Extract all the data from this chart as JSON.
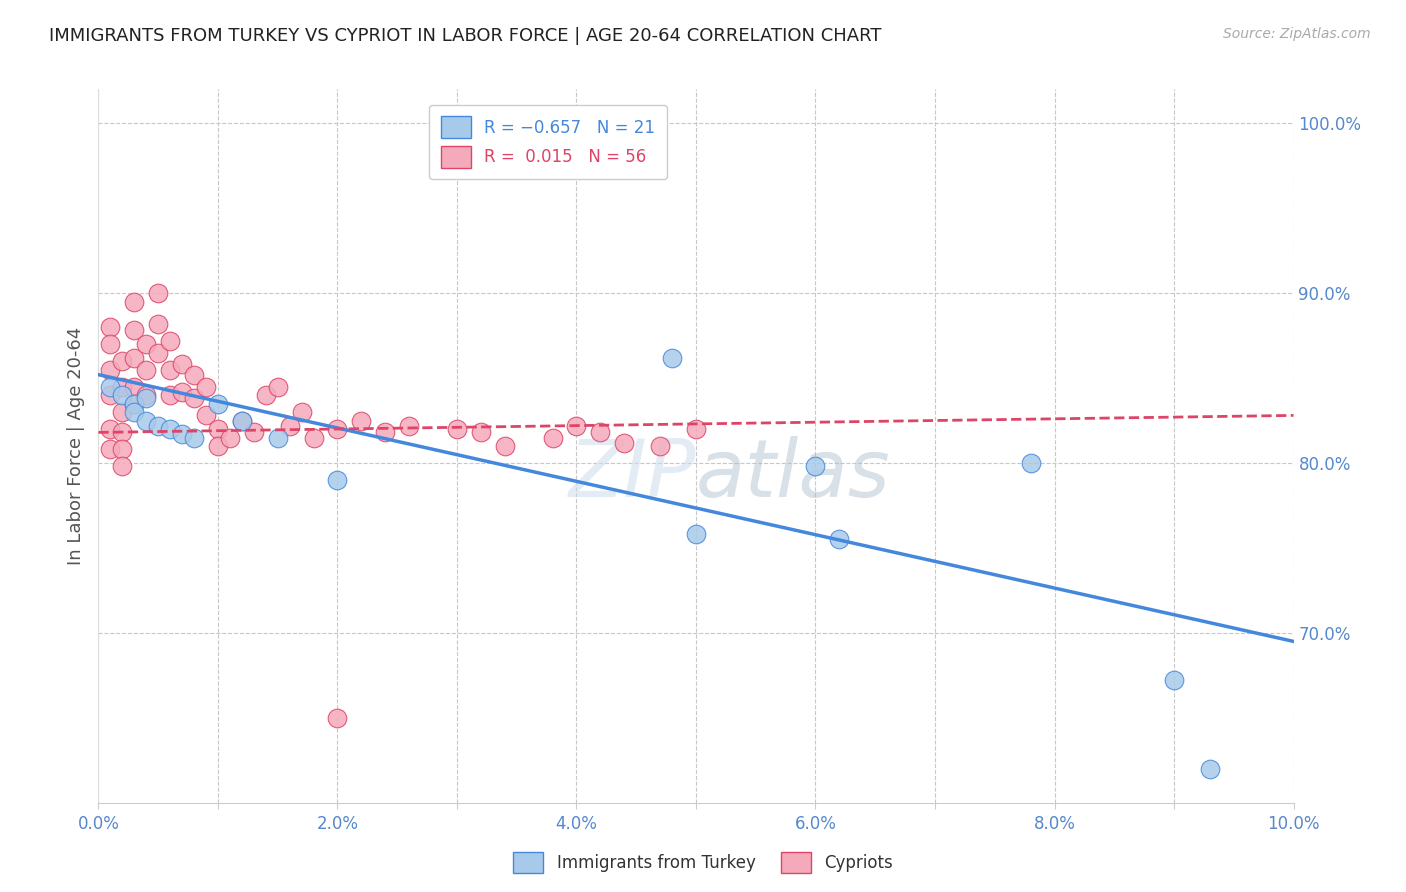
{
  "title": "IMMIGRANTS FROM TURKEY VS CYPRIOT IN LABOR FORCE | AGE 20-64 CORRELATION CHART",
  "source": "Source: ZipAtlas.com",
  "ylabel": "In Labor Force | Age 20-64",
  "xlim": [
    0.0,
    0.1
  ],
  "ylim": [
    0.6,
    1.02
  ],
  "yticks": [
    0.7,
    0.8,
    0.9,
    1.0
  ],
  "xticks": [
    0.0,
    0.01,
    0.02,
    0.03,
    0.04,
    0.05,
    0.06,
    0.07,
    0.08,
    0.09,
    0.1
  ],
  "xtick_labels": [
    "0.0%",
    "",
    "2.0%",
    "",
    "4.0%",
    "",
    "6.0%",
    "",
    "8.0%",
    "",
    "10.0%"
  ],
  "ytick_labels": [
    "70.0%",
    "80.0%",
    "90.0%",
    "100.0%"
  ],
  "blue_color": "#A8CAEA",
  "pink_color": "#F5AABB",
  "blue_line_color": "#4488DD",
  "pink_line_color": "#DD4466",
  "tick_color": "#5588CC",
  "grid_color": "#C8C8C8",
  "turkey_x": [
    0.001,
    0.002,
    0.003,
    0.003,
    0.004,
    0.004,
    0.005,
    0.006,
    0.007,
    0.008,
    0.01,
    0.012,
    0.015,
    0.02,
    0.048,
    0.05,
    0.06,
    0.078,
    0.09,
    0.093,
    0.062
  ],
  "turkey_y": [
    0.845,
    0.84,
    0.835,
    0.83,
    0.838,
    0.825,
    0.822,
    0.82,
    0.817,
    0.815,
    0.835,
    0.825,
    0.815,
    0.79,
    0.862,
    0.758,
    0.798,
    0.8,
    0.672,
    0.62,
    0.755
  ],
  "cypriot_x": [
    0.001,
    0.001,
    0.001,
    0.001,
    0.001,
    0.001,
    0.002,
    0.002,
    0.002,
    0.002,
    0.002,
    0.002,
    0.003,
    0.003,
    0.003,
    0.003,
    0.003,
    0.004,
    0.004,
    0.004,
    0.005,
    0.005,
    0.005,
    0.006,
    0.006,
    0.006,
    0.007,
    0.007,
    0.008,
    0.008,
    0.009,
    0.009,
    0.01,
    0.01,
    0.011,
    0.012,
    0.013,
    0.014,
    0.015,
    0.016,
    0.017,
    0.018,
    0.02,
    0.022,
    0.024,
    0.026,
    0.03,
    0.032,
    0.034,
    0.038,
    0.04,
    0.042,
    0.044,
    0.047,
    0.05,
    0.02
  ],
  "cypriot_y": [
    0.88,
    0.87,
    0.855,
    0.84,
    0.82,
    0.808,
    0.86,
    0.845,
    0.83,
    0.818,
    0.808,
    0.798,
    0.895,
    0.878,
    0.862,
    0.845,
    0.835,
    0.87,
    0.855,
    0.84,
    0.9,
    0.882,
    0.865,
    0.872,
    0.855,
    0.84,
    0.858,
    0.842,
    0.852,
    0.838,
    0.845,
    0.828,
    0.82,
    0.81,
    0.815,
    0.825,
    0.818,
    0.84,
    0.845,
    0.822,
    0.83,
    0.815,
    0.82,
    0.825,
    0.818,
    0.822,
    0.82,
    0.818,
    0.81,
    0.815,
    0.822,
    0.818,
    0.812,
    0.81,
    0.82,
    0.65
  ],
  "blue_trend_x": [
    0.0,
    0.1
  ],
  "blue_trend_y": [
    0.852,
    0.695
  ],
  "pink_trend_x": [
    0.0,
    0.1
  ],
  "pink_trend_y": [
    0.818,
    0.828
  ]
}
